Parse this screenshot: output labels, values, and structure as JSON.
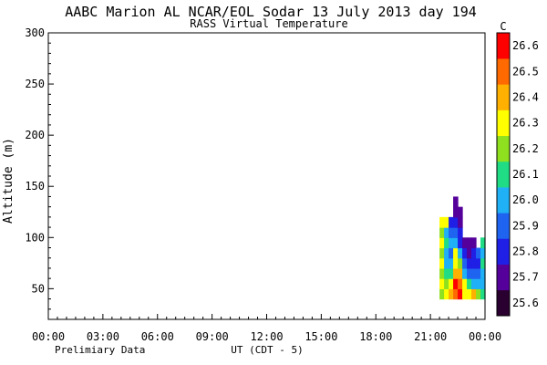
{
  "header": {
    "title": "AABC Marion AL  NCAR/EOL Sodar  13 July 2013  day 194",
    "subtitle": "RASS Virtual Temperature"
  },
  "footer": {
    "left_note": "Prelimiary Data",
    "xlabel": "UT  (CDT - 5)"
  },
  "chart_data": {
    "type": "heatmap",
    "title": "AABC Marion AL  NCAR/EOL Sodar  13 July 2013  day 194",
    "subtitle": "RASS Virtual Temperature",
    "xlabel": "UT  (CDT - 5)",
    "ylabel": "Altitude (m)",
    "xlim": [
      0,
      24
    ],
    "ylim": [
      20,
      300
    ],
    "x_ticks": [
      "00:00",
      "03:00",
      "06:00",
      "09:00",
      "12:00",
      "15:00",
      "18:00",
      "21:00",
      "00:00"
    ],
    "y_ticks": [
      50,
      100,
      150,
      200,
      250,
      300
    ],
    "colorbar": {
      "unit": "C",
      "levels": [
        25.6,
        25.7,
        25.8,
        25.9,
        26.0,
        26.1,
        26.2,
        26.3,
        26.4,
        26.5,
        26.6
      ],
      "labels": [
        "25.6",
        "25.7",
        "25.8",
        "25.9",
        "26.0",
        "26.1",
        "26.2",
        "26.3",
        "26.4",
        "26.5",
        "26.6"
      ],
      "colors": [
        "#2a0030",
        "#55009a",
        "#1f1fe6",
        "#1f64f0",
        "#1fb0f5",
        "#20dc85",
        "#8fe01f",
        "#ffff00",
        "#ffb000",
        "#ff6a00",
        "#ff0000"
      ]
    },
    "field": {
      "time_start": 21.5,
      "time_end": 24.0,
      "columns": [
        {
          "t": 21.5,
          "cells": [
            {
              "alt": 45,
              "v": 26.25
            },
            {
              "alt": 55,
              "v": 26.3
            },
            {
              "alt": 65,
              "v": 26.2
            },
            {
              "alt": 75,
              "v": 26.3
            },
            {
              "alt": 85,
              "v": 26.2
            },
            {
              "alt": 95,
              "v": 26.3
            },
            {
              "alt": 105,
              "v": 26.2
            },
            {
              "alt": 115,
              "v": 26.3
            }
          ]
        },
        {
          "t": 21.75,
          "cells": [
            {
              "alt": 45,
              "v": 26.3
            },
            {
              "alt": 55,
              "v": 26.2
            },
            {
              "alt": 65,
              "v": 26.1
            },
            {
              "alt": 75,
              "v": 26.0
            },
            {
              "alt": 85,
              "v": 26.0
            },
            {
              "alt": 95,
              "v": 26.1
            },
            {
              "alt": 105,
              "v": 26.0
            },
            {
              "alt": 115,
              "v": 26.3
            }
          ]
        },
        {
          "t": 22.0,
          "cells": [
            {
              "alt": 45,
              "v": 26.4
            },
            {
              "alt": 55,
              "v": 26.3
            },
            {
              "alt": 65,
              "v": 26.1
            },
            {
              "alt": 75,
              "v": 26.0
            },
            {
              "alt": 85,
              "v": 25.9
            },
            {
              "alt": 95,
              "v": 26.0
            },
            {
              "alt": 105,
              "v": 25.9
            },
            {
              "alt": 115,
              "v": 25.8
            }
          ]
        },
        {
          "t": 22.25,
          "cells": [
            {
              "alt": 45,
              "v": 26.5
            },
            {
              "alt": 55,
              "v": 26.6
            },
            {
              "alt": 65,
              "v": 26.4
            },
            {
              "alt": 75,
              "v": 26.3
            },
            {
              "alt": 85,
              "v": 26.3
            },
            {
              "alt": 95,
              "v": 26.0
            },
            {
              "alt": 105,
              "v": 25.9
            },
            {
              "alt": 115,
              "v": 25.8
            },
            {
              "alt": 125,
              "v": 25.7
            },
            {
              "alt": 135,
              "v": 25.7
            }
          ]
        },
        {
          "t": 22.5,
          "cells": [
            {
              "alt": 45,
              "v": 26.6
            },
            {
              "alt": 55,
              "v": 26.5
            },
            {
              "alt": 65,
              "v": 26.4
            },
            {
              "alt": 75,
              "v": 26.2
            },
            {
              "alt": 85,
              "v": 26.0
            },
            {
              "alt": 95,
              "v": 25.8
            },
            {
              "alt": 105,
              "v": 25.8
            },
            {
              "alt": 115,
              "v": 25.7
            },
            {
              "alt": 125,
              "v": 25.7
            }
          ]
        },
        {
          "t": 22.75,
          "cells": [
            {
              "alt": 45,
              "v": 26.3
            },
            {
              "alt": 55,
              "v": 26.3
            },
            {
              "alt": 65,
              "v": 26.0
            },
            {
              "alt": 75,
              "v": 25.9
            },
            {
              "alt": 85,
              "v": 25.8
            },
            {
              "alt": 95,
              "v": 25.7
            }
          ]
        },
        {
          "t": 23.0,
          "cells": [
            {
              "alt": 45,
              "v": 26.3
            },
            {
              "alt": 55,
              "v": 26.1
            },
            {
              "alt": 65,
              "v": 25.9
            },
            {
              "alt": 75,
              "v": 25.8
            },
            {
              "alt": 85,
              "v": 25.7
            },
            {
              "alt": 95,
              "v": 25.7
            }
          ]
        },
        {
          "t": 23.25,
          "cells": [
            {
              "alt": 45,
              "v": 26.4
            },
            {
              "alt": 55,
              "v": 26.0
            },
            {
              "alt": 65,
              "v": 25.9
            },
            {
              "alt": 75,
              "v": 25.8
            },
            {
              "alt": 85,
              "v": 25.8
            },
            {
              "alt": 95,
              "v": 25.7
            }
          ]
        },
        {
          "t": 23.5,
          "cells": [
            {
              "alt": 45,
              "v": 26.2
            },
            {
              "alt": 55,
              "v": 26.0
            },
            {
              "alt": 65,
              "v": 25.9
            },
            {
              "alt": 75,
              "v": 25.8
            },
            {
              "alt": 85,
              "v": 25.9
            }
          ]
        },
        {
          "t": 23.75,
          "cells": [
            {
              "alt": 45,
              "v": 26.1
            },
            {
              "alt": 55,
              "v": 26.0
            },
            {
              "alt": 65,
              "v": 26.0
            },
            {
              "alt": 75,
              "v": 26.1
            },
            {
              "alt": 85,
              "v": 26.0
            },
            {
              "alt": 95,
              "v": 26.1
            }
          ]
        }
      ]
    }
  }
}
